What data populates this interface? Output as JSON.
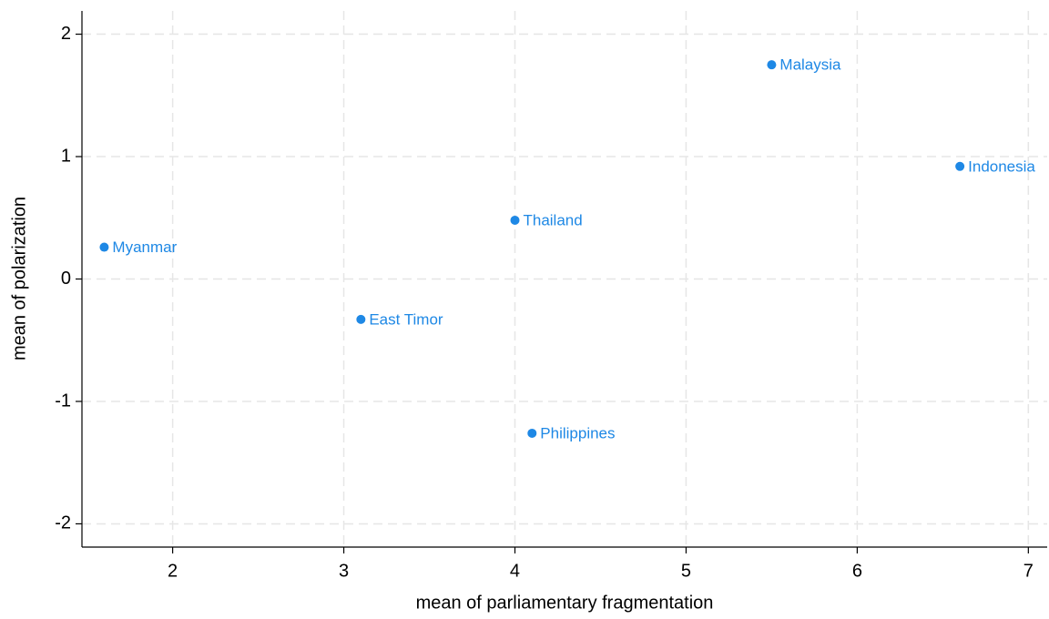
{
  "chart_data": {
    "type": "scatter",
    "xlabel": "mean of parliamentary fragmentation",
    "ylabel": "mean of polarization",
    "labels": [
      "Myanmar",
      "East Timor",
      "Thailand",
      "Philippines",
      "Malaysia",
      "Indonesia"
    ],
    "x": [
      1.6,
      3.1,
      4.0,
      4.1,
      5.5,
      6.6
    ],
    "y": [
      0.26,
      -0.33,
      0.48,
      -1.26,
      1.75,
      0.92
    ],
    "color": "#1e88e5",
    "xlim": [
      1.47,
      7.11
    ],
    "ylim": [
      -2.19,
      2.19
    ],
    "xticks": [
      2,
      3,
      4,
      5,
      6,
      7
    ],
    "yticks": [
      -2,
      -1,
      0,
      1,
      2
    ],
    "grid": true
  }
}
